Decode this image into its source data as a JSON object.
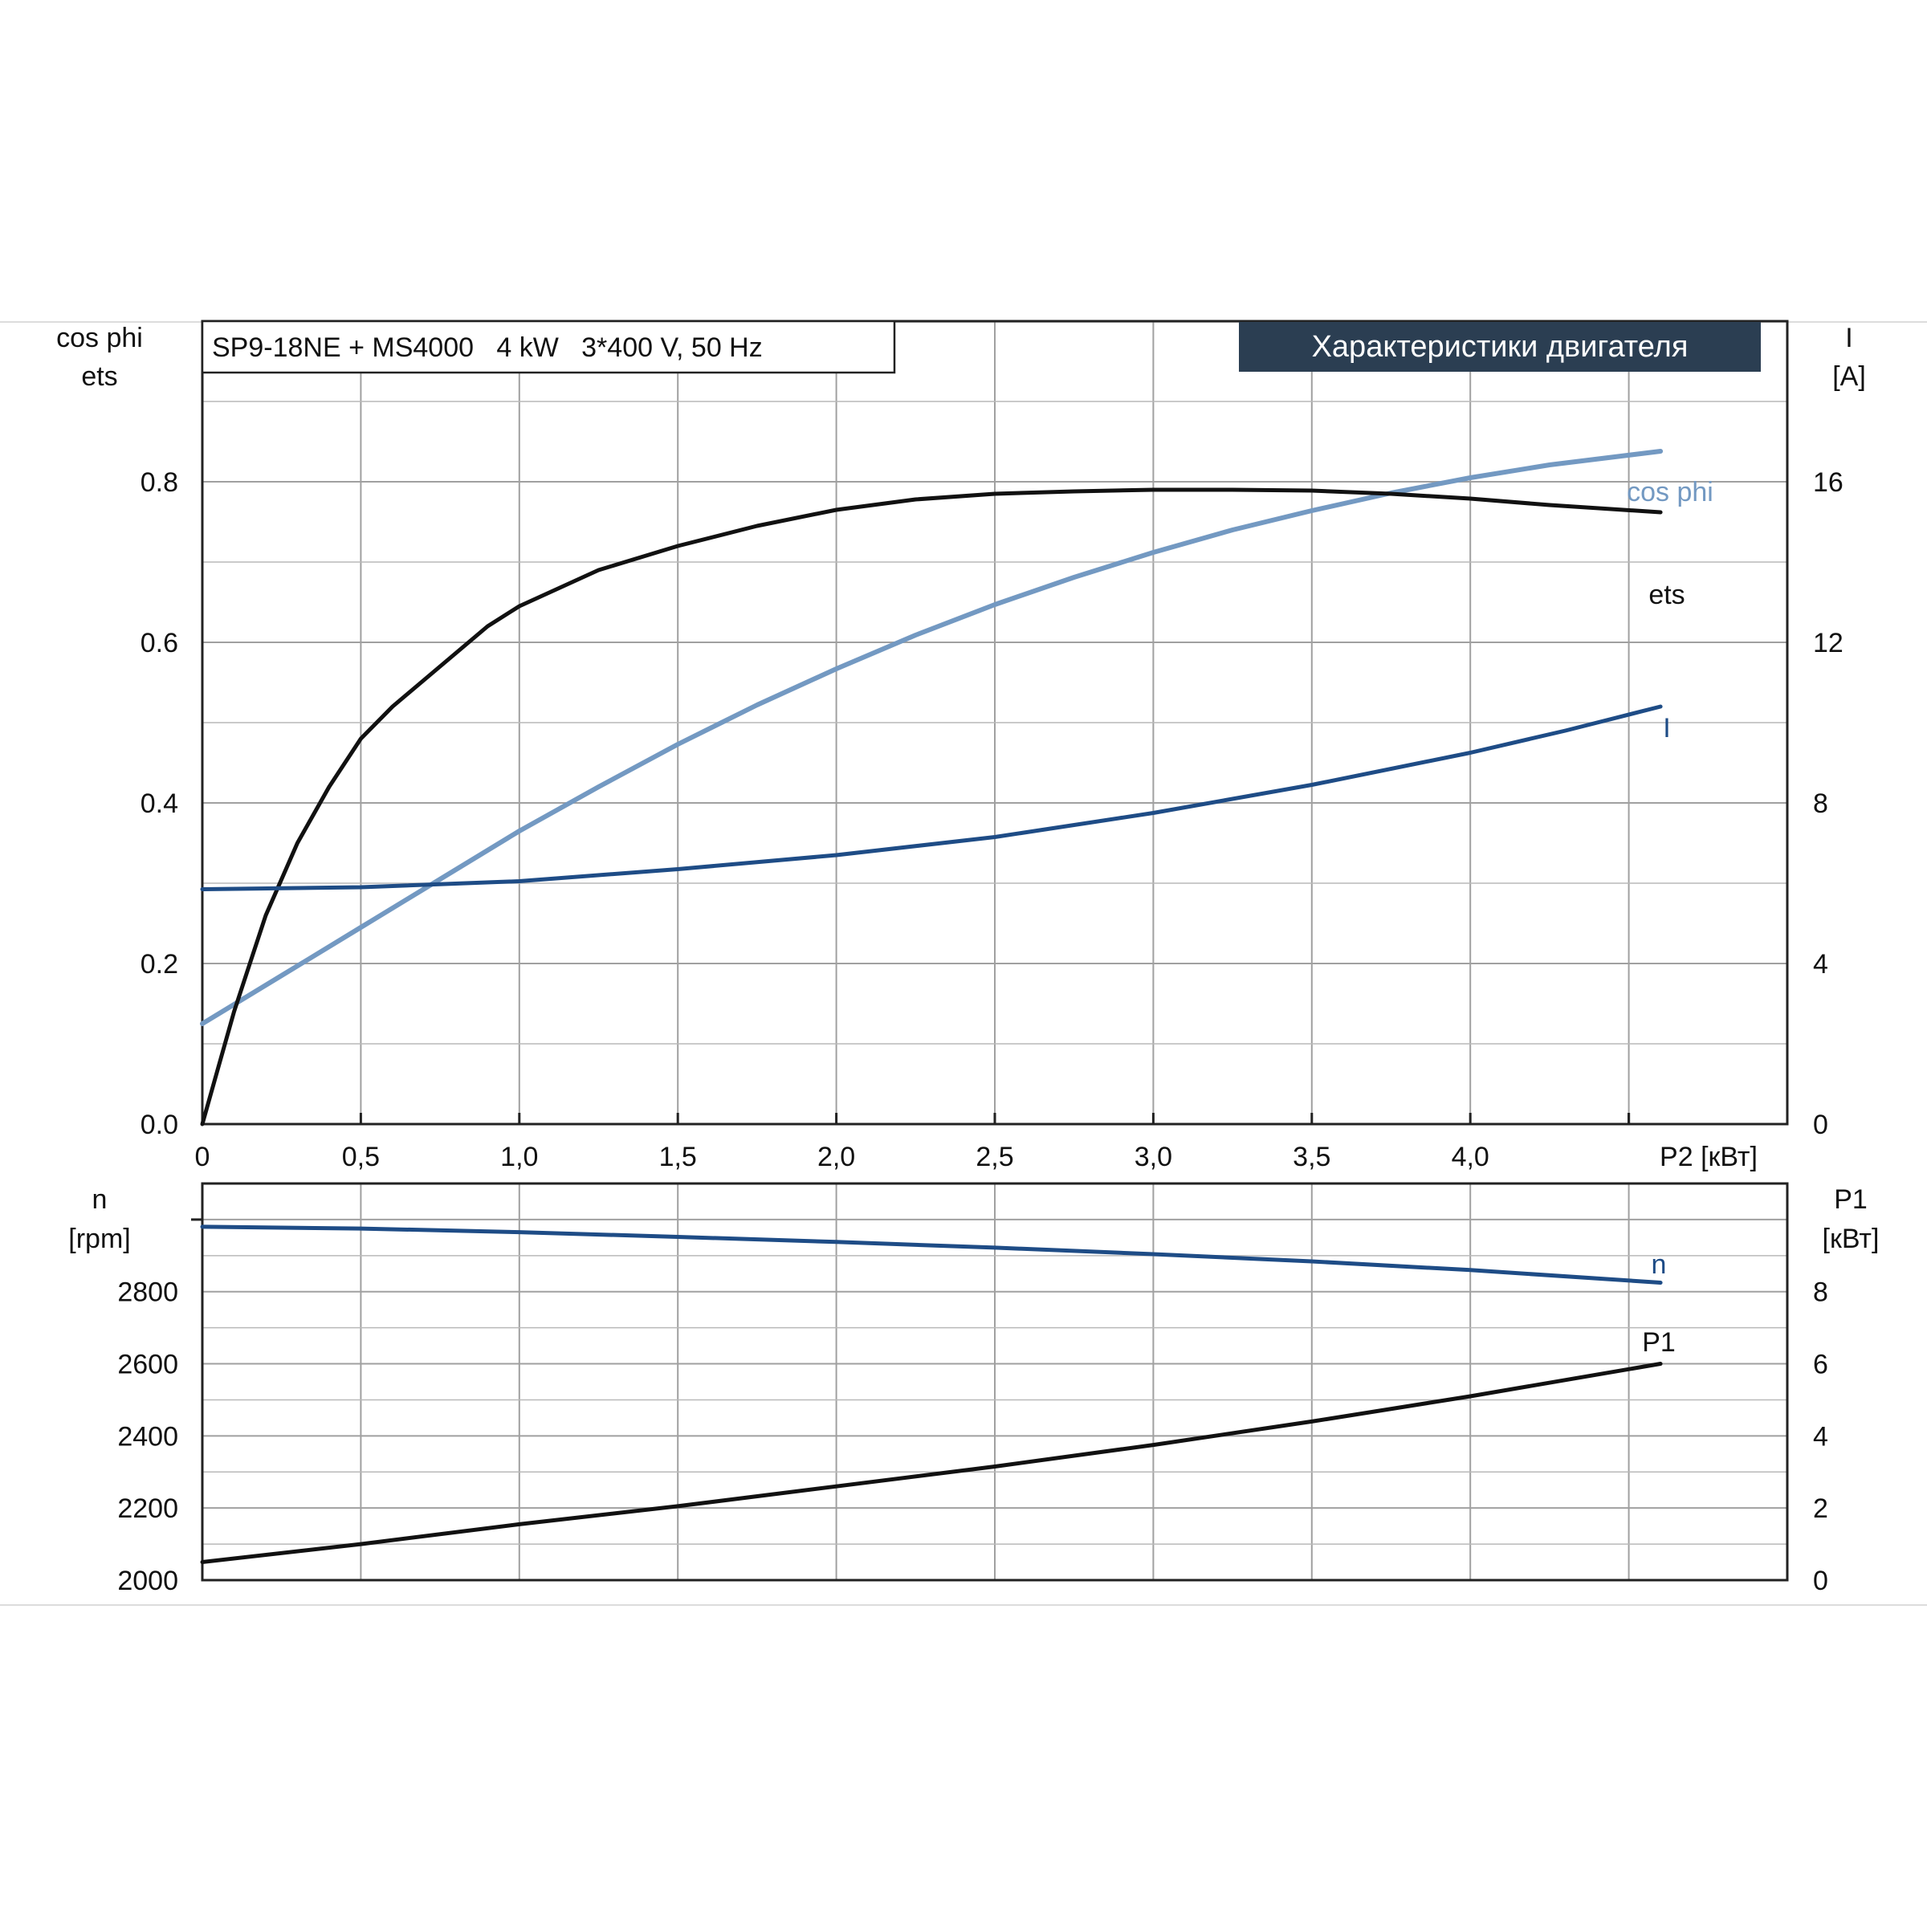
{
  "header": {
    "model_label": "SP9-18NE + MS4000   4 kW   3*400 V, 50 Hz",
    "title_badge": "Характеристики двигателя"
  },
  "colors": {
    "ets": "#111111",
    "cos_phi": "#7399c2",
    "current": "#1e4c86",
    "speed": "#1e4c86",
    "p1": "#111111",
    "badge_bg": "#2b3e52"
  },
  "chart_data": [
    {
      "type": "line",
      "name": "upper",
      "xlabel": "P2 [кВт]",
      "x_ticks": [
        "0",
        "0,5",
        "1,0",
        "1,5",
        "2,0",
        "2,5",
        "3,0",
        "3,5",
        "4,0"
      ],
      "xlim": [
        0,
        5
      ],
      "ylabel_left": [
        "cos phi",
        "ets"
      ],
      "ylim_left": [
        0,
        1.0
      ],
      "y_ticks_left": [
        "0.0",
        "0.2",
        "0.4",
        "0.6",
        "0.8"
      ],
      "ylabel_right": [
        "I",
        "[A]"
      ],
      "ylim_right": [
        0,
        20
      ],
      "y_ticks_right": [
        "0",
        "4",
        "8",
        "12",
        "16"
      ],
      "grid": true,
      "series": [
        {
          "name": "ets",
          "axis": "left",
          "points": [
            [
              0,
              0
            ],
            [
              0.05,
              0.07
            ],
            [
              0.1,
              0.14
            ],
            [
              0.15,
              0.2
            ],
            [
              0.2,
              0.26
            ],
            [
              0.3,
              0.35
            ],
            [
              0.4,
              0.42
            ],
            [
              0.5,
              0.48
            ],
            [
              0.6,
              0.52
            ],
            [
              0.75,
              0.57
            ],
            [
              0.9,
              0.62
            ],
            [
              1.0,
              0.645
            ],
            [
              1.25,
              0.69
            ],
            [
              1.5,
              0.72
            ],
            [
              1.75,
              0.745
            ],
            [
              2.0,
              0.765
            ],
            [
              2.25,
              0.778
            ],
            [
              2.5,
              0.785
            ],
            [
              2.75,
              0.788
            ],
            [
              3.0,
              0.79
            ],
            [
              3.25,
              0.79
            ],
            [
              3.5,
              0.789
            ],
            [
              3.75,
              0.785
            ],
            [
              4.0,
              0.779
            ],
            [
              4.25,
              0.771
            ],
            [
              4.6,
              0.762
            ]
          ]
        },
        {
          "name": "cos phi",
          "axis": "left",
          "points": [
            [
              0,
              0.125
            ],
            [
              0.25,
              0.185
            ],
            [
              0.5,
              0.245
            ],
            [
              0.75,
              0.305
            ],
            [
              1.0,
              0.365
            ],
            [
              1.25,
              0.42
            ],
            [
              1.5,
              0.473
            ],
            [
              1.75,
              0.522
            ],
            [
              2.0,
              0.567
            ],
            [
              2.25,
              0.609
            ],
            [
              2.5,
              0.647
            ],
            [
              2.75,
              0.681
            ],
            [
              3.0,
              0.712
            ],
            [
              3.25,
              0.74
            ],
            [
              3.5,
              0.764
            ],
            [
              3.75,
              0.786
            ],
            [
              4.0,
              0.805
            ],
            [
              4.25,
              0.821
            ],
            [
              4.6,
              0.838
            ]
          ]
        },
        {
          "name": "I",
          "axis": "right",
          "points": [
            [
              0,
              5.85
            ],
            [
              0.5,
              5.9
            ],
            [
              1.0,
              6.05
            ],
            [
              1.5,
              6.35
            ],
            [
              2.0,
              6.7
            ],
            [
              2.5,
              7.15
            ],
            [
              3.0,
              7.75
            ],
            [
              3.5,
              8.45
            ],
            [
              4.0,
              9.25
            ],
            [
              4.3,
              9.8
            ],
            [
              4.6,
              10.4
            ]
          ]
        }
      ]
    },
    {
      "type": "line",
      "name": "lower",
      "xlim": [
        0,
        5
      ],
      "ylabel_left": [
        "n",
        "[rpm]"
      ],
      "ylim_left": [
        2000,
        3100
      ],
      "y_ticks_left": [
        "2000",
        "2200",
        "2400",
        "2600",
        "2800"
      ],
      "ylabel_right": [
        "P1",
        "[кВт]"
      ],
      "ylim_right": [
        0,
        11
      ],
      "y_ticks_right": [
        "0",
        "2",
        "4",
        "6",
        "8"
      ],
      "grid": true,
      "series": [
        {
          "name": "n",
          "axis": "left",
          "points": [
            [
              0,
              2980
            ],
            [
              0.5,
              2975
            ],
            [
              1.0,
              2965
            ],
            [
              1.5,
              2952
            ],
            [
              2.0,
              2938
            ],
            [
              2.5,
              2922
            ],
            [
              3.0,
              2904
            ],
            [
              3.5,
              2884
            ],
            [
              4.0,
              2860
            ],
            [
              4.6,
              2825
            ]
          ]
        },
        {
          "name": "P1",
          "axis": "right",
          "points": [
            [
              0,
              0.5
            ],
            [
              0.5,
              1.0
            ],
            [
              1.0,
              1.55
            ],
            [
              1.5,
              2.05
            ],
            [
              2.0,
              2.6
            ],
            [
              2.5,
              3.15
            ],
            [
              3.0,
              3.75
            ],
            [
              3.5,
              4.4
            ],
            [
              4.0,
              5.1
            ],
            [
              4.6,
              6.0
            ]
          ]
        }
      ]
    }
  ]
}
